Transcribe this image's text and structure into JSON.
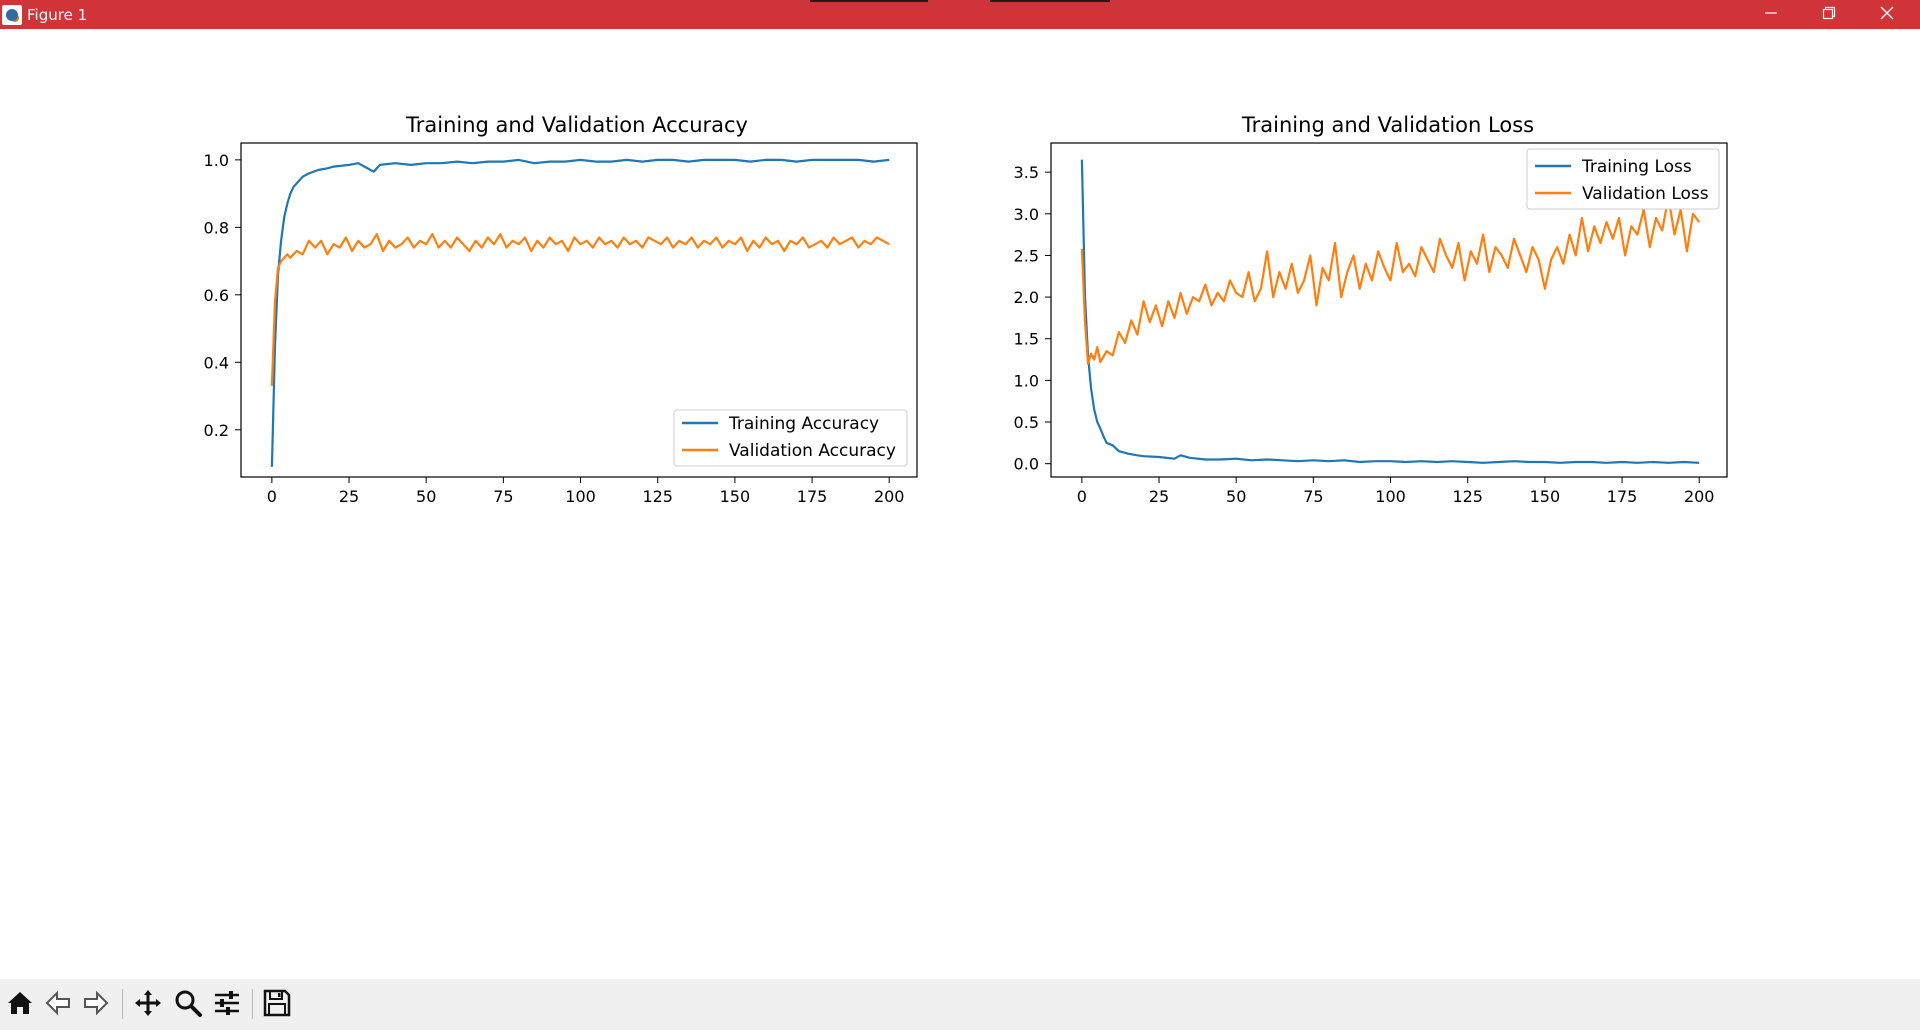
{
  "window": {
    "title": "Figure 1",
    "minimize_icon": "minimize-icon",
    "maximize_icon": "restore-icon",
    "close_icon": "close-icon",
    "titlebar_color": "#d13438"
  },
  "toolbar": {
    "buttons": [
      {
        "name": "home-button",
        "icon": "home-icon"
      },
      {
        "name": "back-button",
        "icon": "back-arrow-icon"
      },
      {
        "name": "forward-button",
        "icon": "forward-arrow-icon"
      },
      {
        "name": "pan-button",
        "icon": "move-icon"
      },
      {
        "name": "zoom-button",
        "icon": "magnifier-icon"
      },
      {
        "name": "configure-subplots-button",
        "icon": "sliders-icon"
      },
      {
        "name": "save-button",
        "icon": "floppy-disk-icon"
      }
    ]
  },
  "chart_data": [
    {
      "type": "line",
      "title": "Training and Validation Accuracy",
      "xlabel": "",
      "ylabel": "",
      "xlim": [
        -10,
        209
      ],
      "ylim": [
        0.06,
        1.05
      ],
      "xticks": [
        "0",
        "25",
        "50",
        "75",
        "100",
        "125",
        "150",
        "175",
        "200"
      ],
      "yticks": [
        "0.2",
        "0.4",
        "0.6",
        "0.8",
        "1.0"
      ],
      "grid": false,
      "legend_position": "lower-right",
      "series": [
        {
          "name": "Training Accuracy",
          "color": "#1f77b4",
          "x": [
            0,
            1,
            2,
            3,
            4,
            5,
            6,
            7,
            8,
            10,
            12,
            15,
            18,
            20,
            25,
            28,
            30,
            33,
            35,
            40,
            45,
            50,
            55,
            60,
            65,
            70,
            75,
            80,
            85,
            90,
            95,
            100,
            105,
            110,
            115,
            120,
            125,
            130,
            135,
            140,
            145,
            150,
            155,
            160,
            165,
            170,
            175,
            180,
            185,
            190,
            195,
            200
          ],
          "y": [
            0.09,
            0.45,
            0.66,
            0.76,
            0.83,
            0.87,
            0.9,
            0.92,
            0.93,
            0.95,
            0.96,
            0.97,
            0.975,
            0.98,
            0.985,
            0.99,
            0.98,
            0.965,
            0.985,
            0.99,
            0.985,
            0.99,
            0.99,
            0.995,
            0.99,
            0.995,
            0.995,
            1.0,
            0.99,
            0.995,
            0.995,
            1.0,
            0.995,
            0.995,
            1.0,
            0.995,
            1.0,
            1.0,
            0.995,
            1.0,
            1.0,
            1.0,
            0.995,
            1.0,
            1.0,
            0.995,
            1.0,
            1.0,
            1.0,
            1.0,
            0.995,
            1.0
          ]
        },
        {
          "name": "Validation Accuracy",
          "color": "#ff7f0e",
          "x": [
            0,
            1,
            2,
            3,
            4,
            5,
            6,
            8,
            10,
            12,
            14,
            16,
            18,
            20,
            22,
            24,
            26,
            28,
            30,
            32,
            34,
            36,
            38,
            40,
            42,
            44,
            46,
            48,
            50,
            52,
            54,
            56,
            58,
            60,
            62,
            64,
            66,
            68,
            70,
            72,
            74,
            76,
            78,
            80,
            82,
            84,
            86,
            88,
            90,
            92,
            94,
            96,
            98,
            100,
            102,
            104,
            106,
            108,
            110,
            112,
            114,
            116,
            118,
            120,
            122,
            124,
            126,
            128,
            130,
            132,
            134,
            136,
            138,
            140,
            142,
            144,
            146,
            148,
            150,
            152,
            154,
            156,
            158,
            160,
            162,
            164,
            166,
            168,
            170,
            172,
            174,
            176,
            178,
            180,
            182,
            184,
            186,
            188,
            190,
            192,
            194,
            196,
            198,
            200
          ],
          "y": [
            0.33,
            0.58,
            0.68,
            0.7,
            0.71,
            0.72,
            0.71,
            0.73,
            0.72,
            0.76,
            0.74,
            0.76,
            0.72,
            0.75,
            0.74,
            0.77,
            0.73,
            0.76,
            0.74,
            0.75,
            0.78,
            0.73,
            0.76,
            0.74,
            0.75,
            0.77,
            0.74,
            0.76,
            0.75,
            0.78,
            0.74,
            0.76,
            0.74,
            0.77,
            0.75,
            0.73,
            0.76,
            0.74,
            0.77,
            0.75,
            0.78,
            0.74,
            0.76,
            0.75,
            0.77,
            0.73,
            0.76,
            0.74,
            0.77,
            0.75,
            0.76,
            0.73,
            0.77,
            0.75,
            0.76,
            0.74,
            0.77,
            0.75,
            0.76,
            0.74,
            0.77,
            0.75,
            0.76,
            0.74,
            0.77,
            0.76,
            0.75,
            0.77,
            0.74,
            0.76,
            0.75,
            0.77,
            0.74,
            0.76,
            0.75,
            0.77,
            0.74,
            0.76,
            0.75,
            0.77,
            0.73,
            0.76,
            0.74,
            0.77,
            0.75,
            0.76,
            0.73,
            0.76,
            0.75,
            0.77,
            0.74,
            0.75,
            0.76,
            0.74,
            0.77,
            0.75,
            0.76,
            0.77,
            0.74,
            0.76,
            0.75,
            0.77,
            0.76,
            0.75
          ]
        }
      ]
    },
    {
      "type": "line",
      "title": "Training and Validation Loss",
      "xlabel": "",
      "ylabel": "",
      "xlim": [
        -10,
        209
      ],
      "ylim": [
        -0.16,
        3.85
      ],
      "xticks": [
        "0",
        "25",
        "50",
        "75",
        "100",
        "125",
        "150",
        "175",
        "200"
      ],
      "yticks": [
        "0.0",
        "0.5",
        "1.0",
        "1.5",
        "2.0",
        "2.5",
        "3.0",
        "3.5"
      ],
      "grid": false,
      "legend_position": "upper-right",
      "series": [
        {
          "name": "Training Loss",
          "color": "#1f77b4",
          "x": [
            0,
            1,
            2,
            3,
            4,
            5,
            6,
            7,
            8,
            10,
            12,
            15,
            18,
            20,
            25,
            30,
            32,
            35,
            40,
            45,
            50,
            55,
            60,
            65,
            70,
            75,
            80,
            85,
            90,
            95,
            100,
            105,
            110,
            115,
            120,
            125,
            130,
            135,
            140,
            145,
            150,
            155,
            160,
            165,
            170,
            175,
            180,
            185,
            190,
            195,
            200
          ],
          "y": [
            3.65,
            2.0,
            1.3,
            0.9,
            0.65,
            0.5,
            0.42,
            0.33,
            0.25,
            0.22,
            0.15,
            0.12,
            0.1,
            0.09,
            0.08,
            0.06,
            0.1,
            0.07,
            0.05,
            0.05,
            0.06,
            0.04,
            0.05,
            0.04,
            0.03,
            0.04,
            0.03,
            0.04,
            0.02,
            0.03,
            0.03,
            0.02,
            0.03,
            0.02,
            0.03,
            0.02,
            0.01,
            0.02,
            0.03,
            0.02,
            0.02,
            0.01,
            0.02,
            0.02,
            0.01,
            0.02,
            0.01,
            0.02,
            0.01,
            0.02,
            0.01
          ]
        },
        {
          "name": "Validation Loss",
          "color": "#ff7f0e",
          "x": [
            0,
            1,
            2,
            3,
            4,
            5,
            6,
            8,
            10,
            12,
            14,
            16,
            18,
            20,
            22,
            24,
            26,
            28,
            30,
            32,
            34,
            36,
            38,
            40,
            42,
            44,
            46,
            48,
            50,
            52,
            54,
            56,
            58,
            60,
            62,
            64,
            66,
            68,
            70,
            72,
            74,
            76,
            78,
            80,
            82,
            84,
            86,
            88,
            90,
            92,
            94,
            96,
            98,
            100,
            102,
            104,
            106,
            108,
            110,
            112,
            114,
            116,
            118,
            120,
            122,
            124,
            126,
            128,
            130,
            132,
            134,
            136,
            138,
            140,
            142,
            144,
            146,
            148,
            150,
            152,
            154,
            156,
            158,
            160,
            162,
            164,
            166,
            168,
            170,
            172,
            174,
            176,
            178,
            180,
            182,
            184,
            186,
            188,
            190,
            192,
            194,
            196,
            198,
            200
          ],
          "y": [
            2.58,
            1.7,
            1.2,
            1.32,
            1.25,
            1.4,
            1.22,
            1.35,
            1.3,
            1.58,
            1.45,
            1.72,
            1.55,
            1.95,
            1.7,
            1.9,
            1.65,
            1.95,
            1.75,
            2.05,
            1.8,
            2.0,
            1.95,
            2.15,
            1.9,
            2.05,
            1.95,
            2.2,
            2.05,
            2.0,
            2.3,
            1.95,
            2.1,
            2.55,
            2.0,
            2.3,
            2.1,
            2.4,
            2.05,
            2.2,
            2.5,
            1.9,
            2.35,
            2.2,
            2.65,
            2.0,
            2.3,
            2.5,
            2.1,
            2.4,
            2.2,
            2.55,
            2.35,
            2.2,
            2.65,
            2.3,
            2.4,
            2.25,
            2.6,
            2.45,
            2.3,
            2.7,
            2.5,
            2.35,
            2.65,
            2.2,
            2.55,
            2.4,
            2.75,
            2.3,
            2.6,
            2.5,
            2.35,
            2.7,
            2.5,
            2.3,
            2.6,
            2.45,
            2.1,
            2.45,
            2.6,
            2.4,
            2.75,
            2.5,
            2.95,
            2.55,
            2.85,
            2.65,
            2.9,
            2.7,
            2.95,
            2.5,
            2.85,
            2.75,
            3.05,
            2.6,
            2.95,
            2.8,
            3.2,
            2.75,
            3.05,
            2.55,
            3.0,
            2.9
          ]
        }
      ]
    }
  ]
}
